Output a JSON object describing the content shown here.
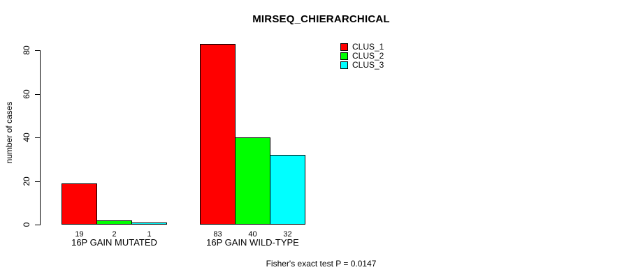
{
  "chart_data": {
    "type": "bar",
    "title": "MIRSEQ_CHIERARCHICAL",
    "ylabel": "number of cases",
    "xlabel": "",
    "categories": [
      "16P GAIN MUTATED",
      "16P GAIN WILD-TYPE"
    ],
    "series": [
      {
        "name": "CLUS_1",
        "color": "#FF0000",
        "values": [
          19,
          83
        ]
      },
      {
        "name": "CLUS_2",
        "color": "#00FF00",
        "values": [
          2,
          40
        ]
      },
      {
        "name": "CLUS_3",
        "color": "#00FFFF",
        "values": [
          1,
          32
        ]
      }
    ],
    "bar_value_labels_shown": true,
    "yticks": [
      0,
      20,
      40,
      60,
      80
    ],
    "ylim": [
      0,
      83
    ],
    "grid": false,
    "legend": {
      "position": "top-right-inside",
      "entries": [
        "CLUS_1",
        "CLUS_2",
        "CLUS_3"
      ]
    },
    "annotation": "Fisher's exact test P = 0.0147",
    "colors": {
      "background": "#FFFFFF",
      "text": "#000000",
      "axis": "#000000"
    }
  }
}
